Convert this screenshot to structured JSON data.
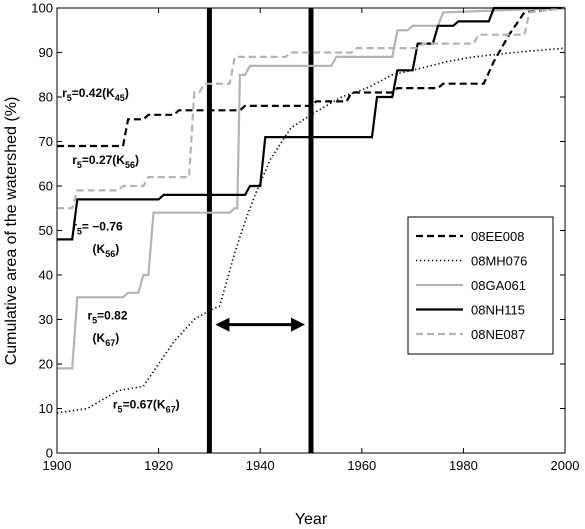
{
  "chart_data": {
    "type": "line",
    "xlabel": "Year",
    "ylabel": "Cumulative area of the watershed (%)",
    "xlim": [
      1900,
      2000
    ],
    "ylim": [
      0,
      100
    ],
    "xticks": [
      1900,
      1920,
      1940,
      1960,
      1980,
      2000
    ],
    "yticks": [
      0,
      10,
      20,
      30,
      40,
      50,
      60,
      70,
      80,
      90,
      100
    ],
    "grid": false,
    "legend_position": "right",
    "series": [
      {
        "name": "08EE008",
        "style": "dashed",
        "color": "#000000",
        "step": true,
        "points": [
          [
            1900,
            69
          ],
          [
            1913,
            69
          ],
          [
            1914,
            75
          ],
          [
            1917,
            75
          ],
          [
            1918,
            76
          ],
          [
            1923,
            76
          ],
          [
            1924,
            77
          ],
          [
            1936,
            77
          ],
          [
            1937,
            78
          ],
          [
            1950,
            78
          ],
          [
            1951,
            79
          ],
          [
            1957,
            79
          ],
          [
            1958,
            81
          ],
          [
            1966,
            81
          ],
          [
            1967,
            82
          ],
          [
            1975,
            82
          ],
          [
            1976,
            83
          ],
          [
            1984,
            83
          ],
          [
            1986,
            88
          ],
          [
            1989,
            94
          ],
          [
            1992,
            99
          ],
          [
            2000,
            100
          ]
        ]
      },
      {
        "name": "08MH076",
        "style": "dotted",
        "color": "#000000",
        "step": false,
        "points": [
          [
            1900,
            9
          ],
          [
            1906,
            10
          ],
          [
            1909,
            12
          ],
          [
            1912,
            14
          ],
          [
            1917,
            15
          ],
          [
            1920,
            20
          ],
          [
            1923,
            25
          ],
          [
            1927,
            30
          ],
          [
            1930,
            32
          ],
          [
            1932,
            33
          ],
          [
            1935,
            45
          ],
          [
            1937,
            52
          ],
          [
            1939,
            58
          ],
          [
            1942,
            66
          ],
          [
            1946,
            73
          ],
          [
            1950,
            76
          ],
          [
            1956,
            80
          ],
          [
            1961,
            82
          ],
          [
            1966,
            85
          ],
          [
            1970,
            86
          ],
          [
            1977,
            88
          ],
          [
            1982,
            89
          ],
          [
            1990,
            90
          ],
          [
            2000,
            91
          ]
        ]
      },
      {
        "name": "08GA061",
        "style": "solid",
        "color": "#b4b4b4",
        "step": true,
        "points": [
          [
            1900,
            19
          ],
          [
            1903,
            19
          ],
          [
            1904,
            35
          ],
          [
            1913,
            35
          ],
          [
            1914,
            36
          ],
          [
            1916,
            36
          ],
          [
            1917,
            40
          ],
          [
            1918,
            40
          ],
          [
            1919,
            54
          ],
          [
            1934,
            54
          ],
          [
            1935,
            55
          ],
          [
            1935.5,
            55
          ],
          [
            1936,
            85
          ],
          [
            1937,
            85
          ],
          [
            1938,
            87
          ],
          [
            1954,
            87
          ],
          [
            1955,
            89
          ],
          [
            1966,
            89
          ],
          [
            1967,
            95
          ],
          [
            1969,
            95
          ],
          [
            1970,
            96
          ],
          [
            1975,
            96
          ],
          [
            1976,
            99
          ],
          [
            2000,
            100
          ]
        ]
      },
      {
        "name": "08NH115",
        "style": "solid",
        "color": "#000000",
        "step": true,
        "points": [
          [
            1900,
            48
          ],
          [
            1903,
            48
          ],
          [
            1904,
            57
          ],
          [
            1920,
            57
          ],
          [
            1921,
            58
          ],
          [
            1937,
            58
          ],
          [
            1938,
            60
          ],
          [
            1940,
            60
          ],
          [
            1941,
            71
          ],
          [
            1962,
            71
          ],
          [
            1963,
            80
          ],
          [
            1966,
            80
          ],
          [
            1967,
            86
          ],
          [
            1970,
            86
          ],
          [
            1971,
            92
          ],
          [
            1974,
            92
          ],
          [
            1975,
            96
          ],
          [
            1978,
            96
          ],
          [
            1979,
            97
          ],
          [
            1985,
            97
          ],
          [
            1986,
            100
          ],
          [
            2000,
            100
          ]
        ]
      },
      {
        "name": "08NE087",
        "style": "dashed",
        "color": "#b4b4b4",
        "step": true,
        "points": [
          [
            1900,
            55
          ],
          [
            1903,
            55
          ],
          [
            1904,
            59
          ],
          [
            1912,
            59
          ],
          [
            1913,
            60
          ],
          [
            1917,
            60
          ],
          [
            1918,
            62
          ],
          [
            1926,
            62
          ],
          [
            1927,
            81
          ],
          [
            1928,
            81
          ],
          [
            1929,
            83
          ],
          [
            1934,
            83
          ],
          [
            1935,
            89
          ],
          [
            1945,
            89
          ],
          [
            1946,
            90
          ],
          [
            1958,
            90
          ],
          [
            1959,
            91
          ],
          [
            1971,
            91
          ],
          [
            1972,
            92
          ],
          [
            1982,
            92
          ],
          [
            1983,
            94
          ],
          [
            1992,
            94
          ],
          [
            1993,
            99
          ],
          [
            2000,
            100
          ]
        ]
      }
    ],
    "vertical_lines": [
      1930,
      1950
    ],
    "double_arrow": {
      "from": 1930,
      "to": 1950,
      "y": 32
    },
    "annotations": [
      {
        "main": "r",
        "sub": "5",
        "value": "=0.42(K",
        "ksub": "45",
        "close": ")",
        "x": 1901,
        "y": 80
      },
      {
        "main": "r",
        "sub": "5",
        "value": "=0.27(K",
        "ksub": "56",
        "close": ")",
        "x": 1903,
        "y": 65
      },
      {
        "main": "r",
        "sub": "5",
        "value": "= −0.76",
        "ksub": "",
        "close": "",
        "x": 1903,
        "y": 50
      },
      {
        "main": "(K",
        "sub": "",
        "value": "",
        "ksub": "56",
        "close": ")",
        "x": 1907,
        "y": 45
      },
      {
        "main": "r",
        "sub": "5",
        "value": "=0.82",
        "ksub": "",
        "close": "",
        "x": 1906,
        "y": 30
      },
      {
        "main": "(K",
        "sub": "",
        "value": "",
        "ksub": "67",
        "close": ")",
        "x": 1907,
        "y": 25
      },
      {
        "main": "r",
        "sub": "5",
        "value": "=0.67(K",
        "ksub": "67",
        "close": ")",
        "x": 1911,
        "y": 10
      }
    ]
  }
}
